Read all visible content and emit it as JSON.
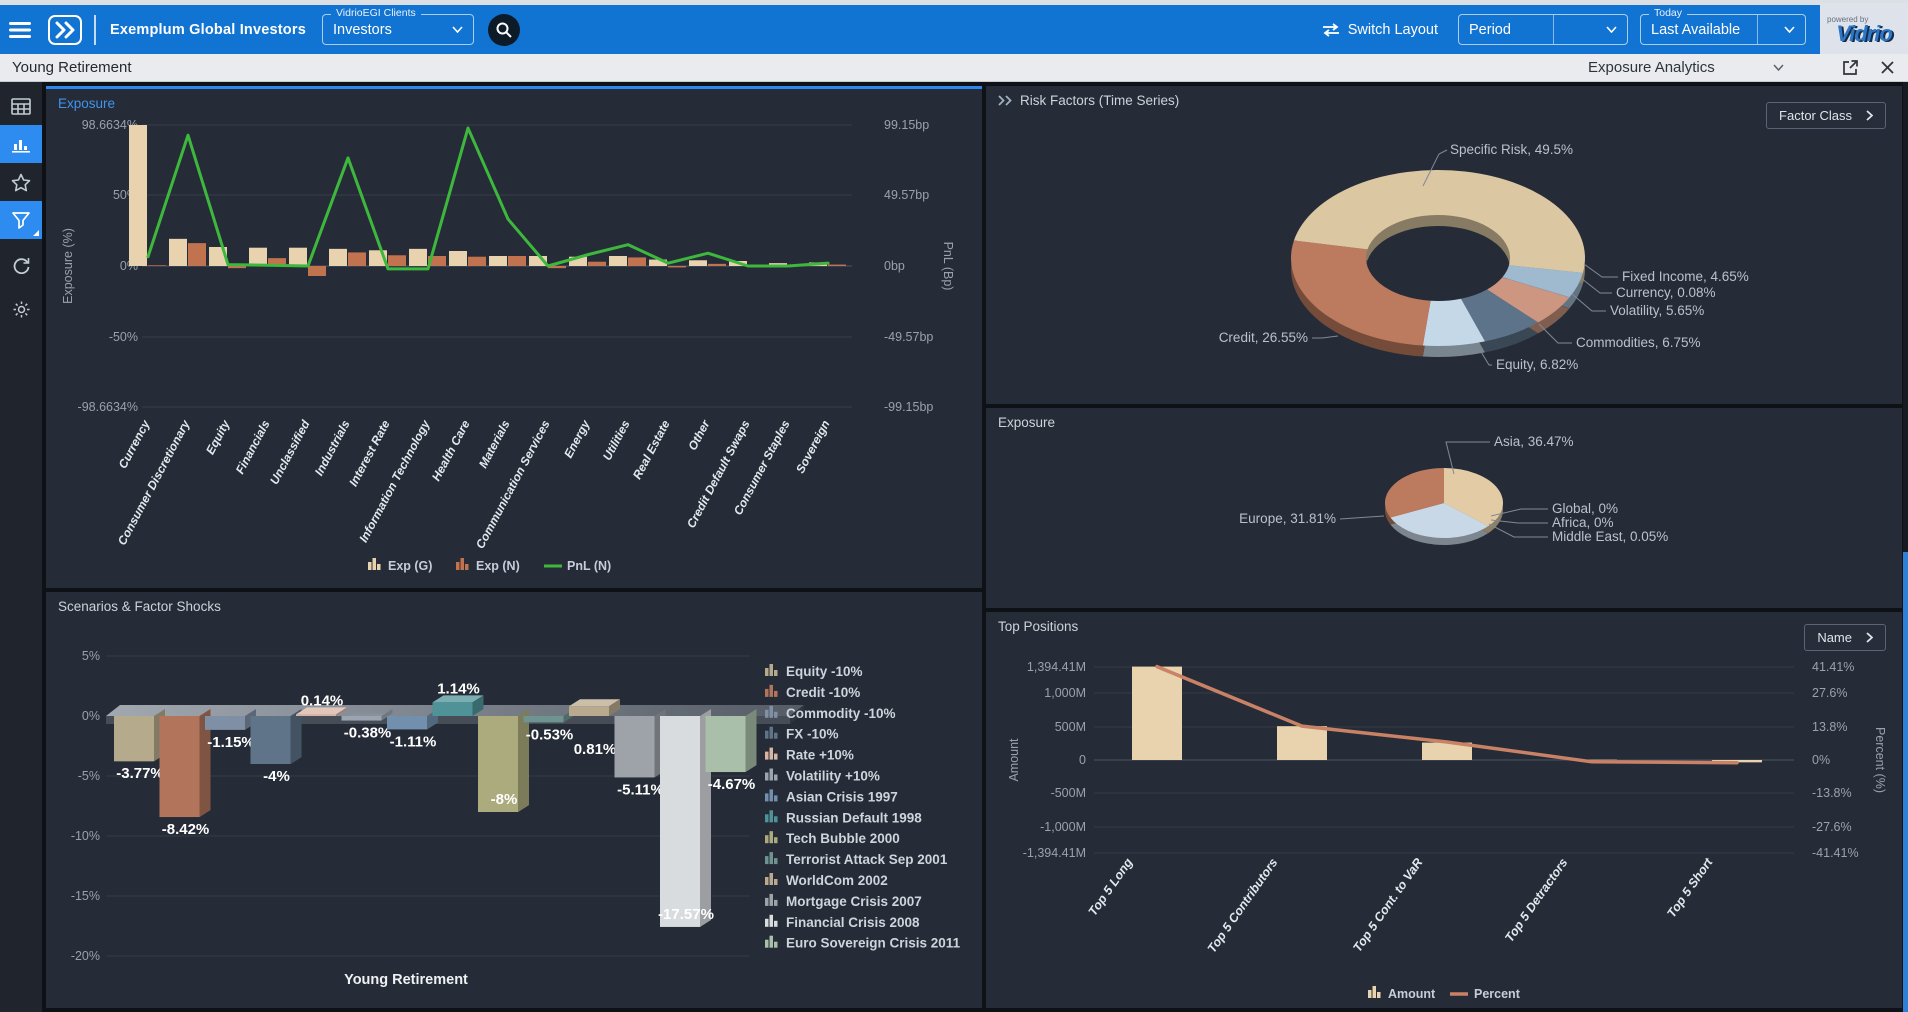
{
  "header": {
    "brand": "Exemplum Global Investors",
    "clients_dropdown": {
      "label": "VidrioEGI Clients",
      "value": "Investors"
    },
    "switch_layout_label": "Switch Layout",
    "period_dropdown": {
      "value": "Period"
    },
    "today_dropdown": {
      "label": "Today",
      "value": "Last Available"
    },
    "powered_by": "powered by",
    "vidrio_logo": "Vidrio"
  },
  "subheader": {
    "title": "Young Retirement",
    "view_selector": "Exposure Analytics"
  },
  "panels": {
    "exposure": {
      "title": "Exposure"
    },
    "scenarios": {
      "title": "Scenarios & Factor Shocks"
    },
    "risk_factors": {
      "title": "Risk Factors (Time Series)",
      "button": "Factor Class"
    },
    "exposure_regional": {
      "title": "Exposure"
    },
    "top_positions": {
      "title": "Top Positions",
      "button": "Name"
    }
  },
  "theme": {
    "header_blue": "#1173d2",
    "accent_blue": "#2e8bf0",
    "panel_bg": "#262c37",
    "beige_bar": "#e8d3ae",
    "orange_bar": "#c1734f",
    "green_line": "#3db83d",
    "salmon_line": "#c98265"
  },
  "chart_data": [
    {
      "id": "exposure_by_asset_class",
      "type": "bar",
      "title": "Exposure",
      "categories": [
        "Currency",
        "Consumer Discretionary",
        "Equity",
        "Financials",
        "Unclassified",
        "Industrials",
        "Interest Rate",
        "Information Technology",
        "Health Care",
        "Materials",
        "Communication Services",
        "Energy",
        "Utilities",
        "Real Estate",
        "Other",
        "Credit Default Swaps",
        "Consumer Staples",
        "Sovereign"
      ],
      "series": [
        {
          "name": "Exp (G)",
          "type": "bar",
          "color": "#e8d3ae",
          "values": [
            98.66,
            19,
            13.3,
            12.8,
            12.8,
            12,
            11,
            12,
            10.5,
            7,
            7,
            6.5,
            7,
            4.5,
            4,
            3.5,
            2,
            2.5
          ]
        },
        {
          "name": "Exp (N)",
          "type": "bar",
          "color": "#c1734f",
          "values": [
            0.5,
            16,
            -1.5,
            5.5,
            -7,
            9.5,
            7.5,
            7,
            6.5,
            7,
            -1.5,
            3,
            6,
            -1,
            1.5,
            0.5,
            0.5,
            1
          ]
        },
        {
          "name": "PnL (N)",
          "type": "line",
          "color": "#3db83d",
          "values": [
            6.5,
            92,
            1,
            0.5,
            0,
            76,
            -2,
            -2,
            97,
            33,
            0,
            8,
            15,
            2,
            9,
            0,
            0,
            2
          ]
        }
      ],
      "y_left": {
        "label": "Exposure (%)",
        "ticks": [
          "98.6634%",
          "50%",
          "0%",
          "-50%",
          "-98.6634%"
        ],
        "max": 98.6634
      },
      "y_right": {
        "label": "PnL (Bp)",
        "ticks": [
          "99.15bp",
          "49.57bp",
          "0bp",
          "-49.57bp",
          "-99.15bp"
        ],
        "max": 99.15
      },
      "legend_position": "bottom"
    },
    {
      "id": "risk_factors_donut",
      "type": "pie",
      "donut": true,
      "title": "Risk Factors (Time Series)",
      "slices": [
        {
          "label": "Specific Risk",
          "value": 49.5,
          "display": "Specific Risk, 49.5%",
          "color": "#dbc7a2"
        },
        {
          "label": "Fixed Income",
          "value": 4.65,
          "display": "Fixed Income, 4.65%",
          "color": "#9fb9cf"
        },
        {
          "label": "Currency",
          "value": 0.08,
          "display": "Currency, 0.08%",
          "color": "#8aa5bd"
        },
        {
          "label": "Volatility",
          "value": 5.65,
          "display": "Volatility, 5.65%",
          "color": "#cd9680"
        },
        {
          "label": "Commodities",
          "value": 6.75,
          "display": "Commodities, 6.75%",
          "color": "#5d7389"
        },
        {
          "label": "Equity",
          "value": 6.82,
          "display": "Equity, 6.82%",
          "color": "#c5d8e7"
        },
        {
          "label": "Credit",
          "value": 26.55,
          "display": "Credit, 26.55%",
          "color": "#bc7a5e"
        }
      ]
    },
    {
      "id": "exposure_regional_pie",
      "type": "pie",
      "donut": false,
      "title": "Exposure",
      "slices": [
        {
          "label": "Asia",
          "value": 36.47,
          "display": "Asia, 36.47%",
          "color": "#e3cca5"
        },
        {
          "label": "Global",
          "value": 0,
          "display": "Global, 0%",
          "color": "#9db3c8"
        },
        {
          "label": "Africa",
          "value": 0,
          "display": "Africa, 0%",
          "color": "#9db3c8"
        },
        {
          "label": "Middle East",
          "value": 0.05,
          "display": "Middle East, 0.05%",
          "color": "#9db3c8"
        },
        {
          "label": "",
          "value": 31.67,
          "display": "",
          "color": "#c9d8e6"
        },
        {
          "label": "Europe",
          "value": 31.81,
          "display": "Europe, 31.81%",
          "color": "#bc7a5e"
        }
      ]
    },
    {
      "id": "scenarios_factor_shocks",
      "type": "bar",
      "title": "Scenarios & Factor Shocks",
      "xlabel": "Young Retirement",
      "categories": [
        "Equity -10%",
        "Credit -10%",
        "Commodity -10%",
        "FX -10%",
        "Rate +10%",
        "Volatility +10%",
        "Asian Crisis 1997",
        "Russian Default 1998",
        "Tech Bubble 2000",
        "Terrorist Attack Sep 2001",
        "WorldCom 2002",
        "Mortgage Crisis 2007",
        "Financial Crisis 2008",
        "Euro Sovereign Crisis 2011"
      ],
      "values": [
        -3.77,
        -8.42,
        -1.15,
        -4,
        0.14,
        -0.38,
        -1.11,
        1.14,
        -8,
        -0.53,
        0.81,
        -5.11,
        -17.57,
        -4.67
      ],
      "value_labels": [
        "-3.77%",
        "-8.42%",
        "-1.15%",
        "-4%",
        "0.14%",
        "-0.38%",
        "-1.11%",
        "1.14%",
        "-8%",
        "-0.53%",
        "0.81%",
        "-5.11%",
        "-17.57%",
        "-4.67%"
      ],
      "colors": [
        "#b5aa8c",
        "#b2745b",
        "#7e8fa6",
        "#5f7389",
        "#d9b3a3",
        "#9aa5b1",
        "#7290ad",
        "#4f9398",
        "#acab7d",
        "#6f9390",
        "#b9a98e",
        "#9da3a9",
        "#d9dcdf",
        "#aabfaa"
      ],
      "y_ticks": [
        "5%",
        "0%",
        "-5%",
        "-10%",
        "-15%",
        "-20%"
      ],
      "ylim": [
        -20,
        5
      ],
      "legend_position": "right"
    },
    {
      "id": "top_positions",
      "type": "bar",
      "title": "Top Positions",
      "categories": [
        "Top 5 Long",
        "Top 5 Contributors",
        "Top 5 Cont. to VaR",
        "Top 5 Detractors",
        "Top 5 Short"
      ],
      "series": [
        {
          "name": "Amount",
          "type": "bar",
          "color": "#e8d3ae",
          "values": [
            1394.41,
            505,
            260,
            5,
            -35
          ]
        },
        {
          "name": "Percent",
          "type": "line",
          "color": "#c98265",
          "values": [
            41.41,
            15,
            8,
            -0.8,
            -1.2
          ]
        }
      ],
      "y_left": {
        "label": "Amount",
        "ticks": [
          "1,394.41M",
          "1,000M",
          "500M",
          "0",
          "-500M",
          "-1,000M",
          "-1,394.41M"
        ],
        "tick_values": [
          1394.41,
          1000,
          500,
          0,
          -500,
          -1000,
          -1394.41
        ]
      },
      "y_right": {
        "label": "Percent (%)",
        "ticks": [
          "41.41%",
          "27.6%",
          "13.8%",
          "0%",
          "-13.8%",
          "-27.6%",
          "-41.41%"
        ],
        "tick_values": [
          41.41,
          27.6,
          13.8,
          0,
          -13.8,
          -27.6,
          -41.41
        ]
      },
      "legend_position": "bottom"
    }
  ]
}
